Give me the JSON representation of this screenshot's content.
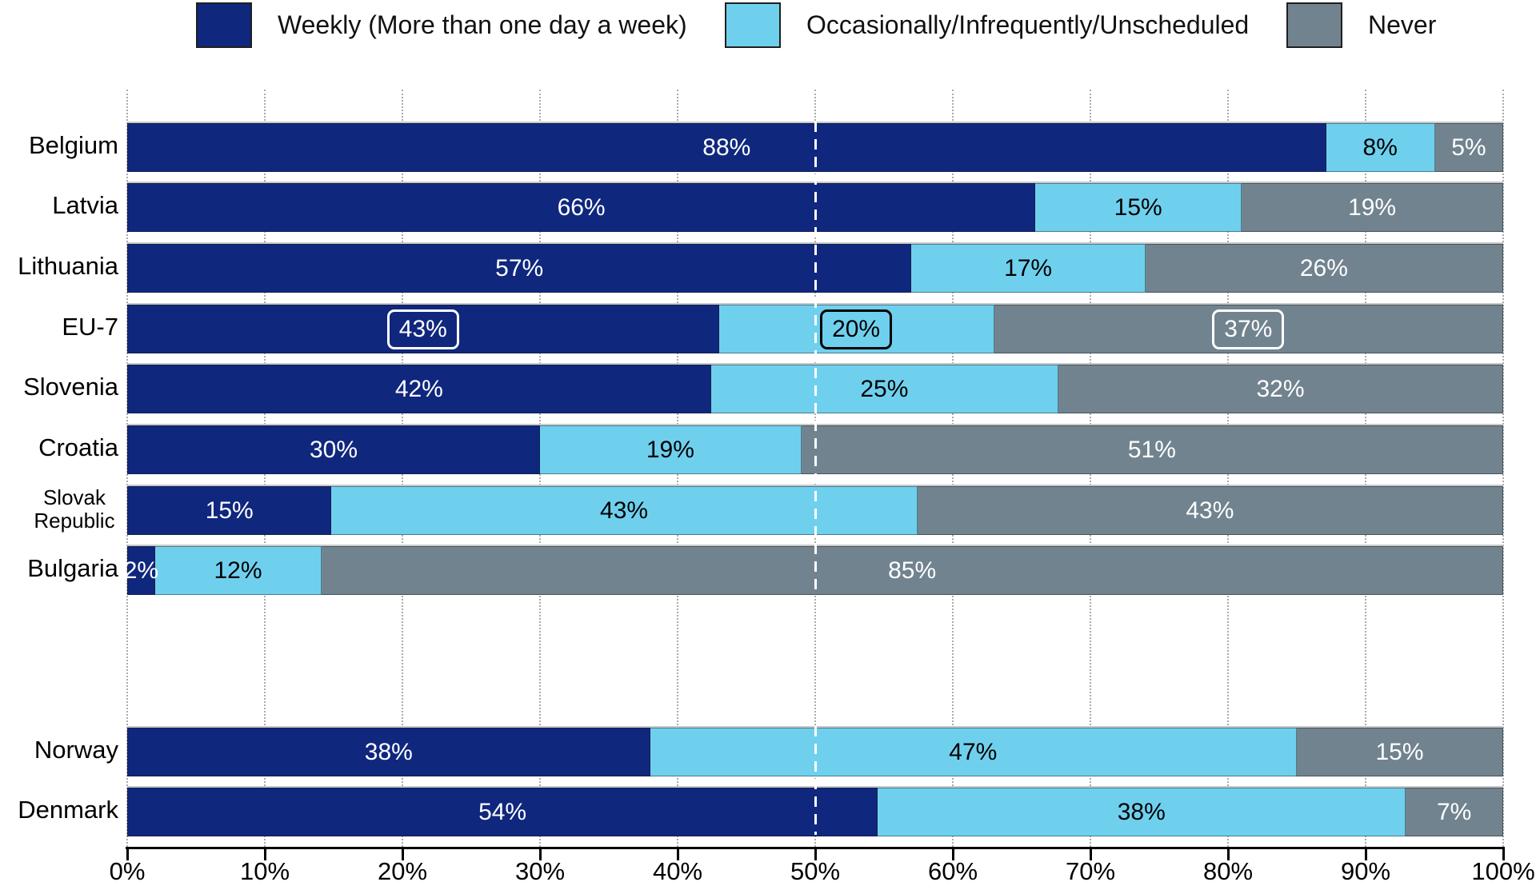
{
  "chart_data": {
    "type": "bar",
    "orientation": "horizontal",
    "stacked": true,
    "unit": "%",
    "legend_position": "top",
    "series": [
      {
        "name": "Weekly (More than one day a week)",
        "color": "#10277e",
        "label_color": "#ffffff"
      },
      {
        "name": "Occasionally/Infrequently/Unscheduled",
        "color": "#6fd0ee",
        "label_color": "#000000"
      },
      {
        "name": "Never",
        "color": "#71838f",
        "label_color": "#ffffff"
      }
    ],
    "highlight_dot_color": "#e8e53a",
    "reference_line_pct": 50,
    "x_axis": {
      "min": 0,
      "max": 100,
      "ticks": [
        "0%",
        "10%",
        "20%",
        "30%",
        "40%",
        "50%",
        "60%",
        "70%",
        "80%",
        "90%",
        "100%"
      ]
    },
    "rows": [
      {
        "label": "Belgium",
        "values": [
          88,
          8,
          5
        ],
        "group": 1,
        "highlighted": false
      },
      {
        "label": "Latvia",
        "values": [
          66,
          15,
          19
        ],
        "group": 1,
        "highlighted": false
      },
      {
        "label": "Lithuania",
        "values": [
          57,
          17,
          26
        ],
        "group": 1,
        "highlighted": false
      },
      {
        "label": "EU-7",
        "values": [
          43,
          20,
          37
        ],
        "group": 1,
        "highlighted": true
      },
      {
        "label": "Slovenia",
        "values": [
          42,
          25,
          32
        ],
        "group": 1,
        "highlighted": false
      },
      {
        "label": "Croatia",
        "values": [
          30,
          19,
          51
        ],
        "group": 1,
        "highlighted": false
      },
      {
        "label": "Slovak Republic",
        "values": [
          15,
          43,
          43
        ],
        "group": 1,
        "highlighted": false
      },
      {
        "label": "Bulgaria",
        "values": [
          2,
          12,
          85
        ],
        "group": 1,
        "highlighted": false
      },
      {
        "label": "Norway",
        "values": [
          38,
          47,
          15
        ],
        "group": 2,
        "highlighted": false
      },
      {
        "label": "Denmark",
        "values": [
          54,
          38,
          7
        ],
        "group": 2,
        "highlighted": false
      }
    ],
    "value_label_suffix": "%"
  }
}
